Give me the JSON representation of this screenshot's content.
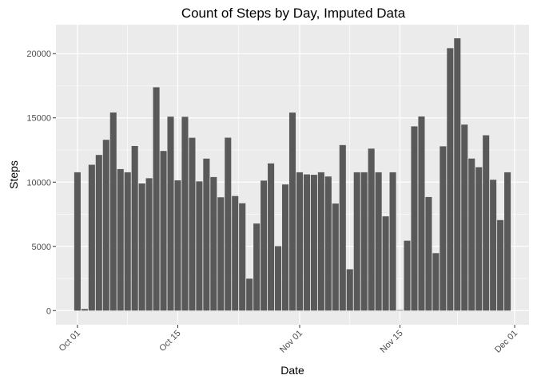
{
  "chart_data": {
    "type": "bar",
    "title": "Count of Steps by Day, Imputed Data",
    "xlabel": "Date",
    "ylabel": "Steps",
    "ylim": [
      -1100,
      22250
    ],
    "xlim": [
      "2012-09-28",
      "2012-12-03"
    ],
    "y_ticks": [
      0,
      5000,
      10000,
      15000,
      20000
    ],
    "x_ticks": [
      {
        "label": "Oct 01",
        "date": "2012-10-01"
      },
      {
        "label": "Oct 15",
        "date": "2012-10-15"
      },
      {
        "label": "Nov 01",
        "date": "2012-11-01"
      },
      {
        "label": "Nov 15",
        "date": "2012-11-15"
      },
      {
        "label": "Dec 01",
        "date": "2012-12-01"
      }
    ],
    "grid": true,
    "bar_color": "#595959",
    "panel_color": "#ebebeb",
    "grid_color": "#ffffff",
    "x": [
      "2012-10-01",
      "2012-10-02",
      "2012-10-03",
      "2012-10-04",
      "2012-10-05",
      "2012-10-06",
      "2012-10-07",
      "2012-10-08",
      "2012-10-09",
      "2012-10-10",
      "2012-10-11",
      "2012-10-12",
      "2012-10-13",
      "2012-10-14",
      "2012-10-15",
      "2012-10-16",
      "2012-10-17",
      "2012-10-18",
      "2012-10-19",
      "2012-10-20",
      "2012-10-21",
      "2012-10-22",
      "2012-10-23",
      "2012-10-24",
      "2012-10-25",
      "2012-10-26",
      "2012-10-27",
      "2012-10-28",
      "2012-10-29",
      "2012-10-30",
      "2012-10-31",
      "2012-11-01",
      "2012-11-02",
      "2012-11-03",
      "2012-11-04",
      "2012-11-05",
      "2012-11-06",
      "2012-11-07",
      "2012-11-08",
      "2012-11-09",
      "2012-11-10",
      "2012-11-11",
      "2012-11-12",
      "2012-11-13",
      "2012-11-14",
      "2012-11-15",
      "2012-11-16",
      "2012-11-17",
      "2012-11-18",
      "2012-11-19",
      "2012-11-20",
      "2012-11-21",
      "2012-11-22",
      "2012-11-23",
      "2012-11-24",
      "2012-11-25",
      "2012-11-26",
      "2012-11-27",
      "2012-11-28",
      "2012-11-29",
      "2012-11-30"
    ],
    "values": [
      10766,
      126,
      11352,
      12116,
      13294,
      15420,
      11015,
      10766,
      12811,
      9900,
      10304,
      17382,
      12426,
      15098,
      10139,
      15084,
      13452,
      10056,
      11829,
      10395,
      8821,
      13460,
      8918,
      8355,
      2492,
      6778,
      10119,
      11458,
      5018,
      9819,
      15414,
      10766,
      10600,
      10571,
      10766,
      10439,
      8334,
      12883,
      3219,
      10766,
      10766,
      12608,
      10765,
      7336,
      10766,
      41,
      5441,
      14339,
      15110,
      8841,
      4472,
      12787,
      20427,
      21194,
      14478,
      11834,
      11162,
      13646,
      10183,
      7047,
      10766
    ]
  }
}
